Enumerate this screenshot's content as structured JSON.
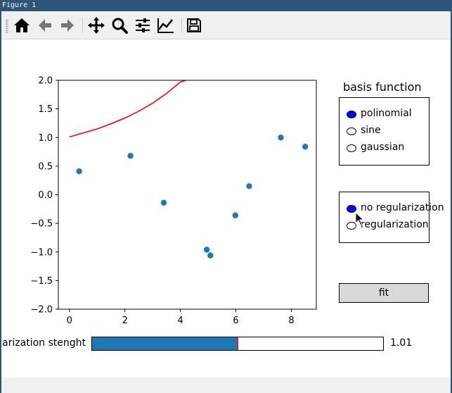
{
  "window": {
    "title": "Figure 1"
  },
  "toolbar": {
    "buttons": [
      {
        "name": "home",
        "icon": "home-icon"
      },
      {
        "name": "back",
        "icon": "arrow-left-icon"
      },
      {
        "name": "forward",
        "icon": "arrow-right-icon"
      },
      {
        "name": "pan",
        "icon": "move-icon"
      },
      {
        "name": "zoom",
        "icon": "zoom-icon"
      },
      {
        "name": "configure-subplots",
        "icon": "sliders-icon"
      },
      {
        "name": "edit-axis",
        "icon": "line-chart-icon"
      },
      {
        "name": "save",
        "icon": "save-icon"
      }
    ]
  },
  "basis_panel": {
    "title": "basis function",
    "options": [
      "polinomial",
      "sine",
      "gaussian"
    ],
    "selected": "polinomial"
  },
  "regularization_panel": {
    "options": [
      "no regularization",
      "regularization"
    ],
    "selected": "no regularization"
  },
  "fit_button": {
    "label": "fit"
  },
  "slider": {
    "label": "arization stenght",
    "value_text": "1.01",
    "fill_fraction": 0.5
  },
  "colors": {
    "scatter": "#1f77b4",
    "curve": "#e31a1c",
    "slider_fill": "#1f77b4",
    "radio_selected": "#0000ff",
    "button_bg": "#d9d9d9"
  },
  "chart_data": {
    "type": "scatter",
    "xlim": [
      -0.4,
      8.9
    ],
    "ylim": [
      -2.0,
      2.0
    ],
    "xticks": [
      0,
      2,
      4,
      6,
      8
    ],
    "yticks": [
      2.0,
      1.5,
      1.0,
      0.5,
      0.0,
      -0.5,
      -1.0,
      -1.5,
      -2.0
    ],
    "xtick_labels": [
      "0",
      "2",
      "4",
      "6",
      "8"
    ],
    "ytick_labels": [
      "2.0",
      "1.5",
      "1.0",
      "0.5",
      "0.0",
      "−0.5",
      "−1.0",
      "−1.5",
      "−2.0"
    ],
    "points": [
      {
        "x": 0.35,
        "y": 0.41
      },
      {
        "x": 2.2,
        "y": 0.68
      },
      {
        "x": 3.4,
        "y": -0.14
      },
      {
        "x": 4.95,
        "y": -0.96
      },
      {
        "x": 5.08,
        "y": -1.06
      },
      {
        "x": 5.98,
        "y": -0.36
      },
      {
        "x": 6.48,
        "y": 0.15
      },
      {
        "x": 7.62,
        "y": 1.0
      },
      {
        "x": 8.5,
        "y": 0.84
      }
    ],
    "curve": {
      "x": [
        0,
        0.5,
        1,
        1.5,
        2,
        2.5,
        3,
        3.5,
        4,
        4.2
      ],
      "y": [
        1.01,
        1.08,
        1.15,
        1.24,
        1.34,
        1.46,
        1.6,
        1.77,
        1.97,
        2.0
      ]
    }
  }
}
